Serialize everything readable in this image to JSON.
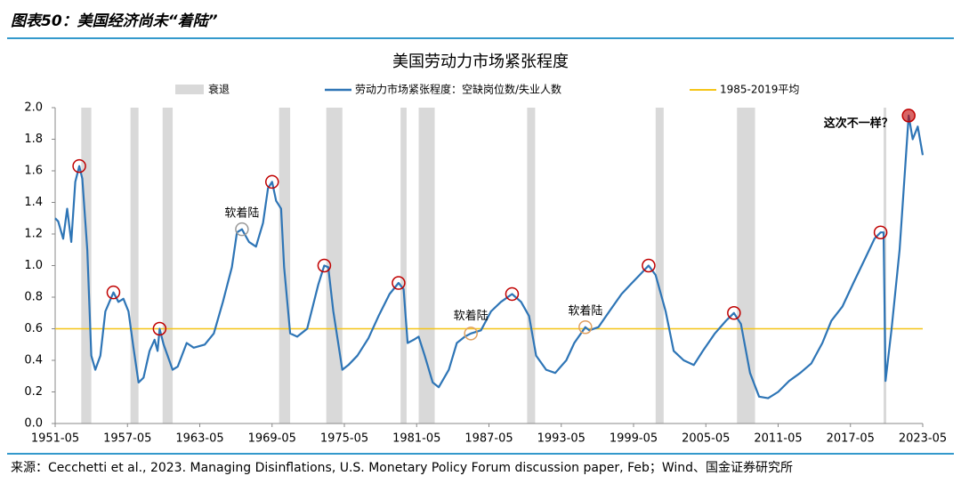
{
  "header": {
    "title": "图表50：美国经济尚未“着陆”"
  },
  "chart_data": {
    "type": "line",
    "title": "美国劳动力市场紧张程度",
    "recession_name": "衰退",
    "recession_color": "#d9d9d9",
    "recessions": [
      [
        "1953-07",
        "1954-05"
      ],
      [
        "1957-08",
        "1958-04"
      ],
      [
        "1960-04",
        "1961-02"
      ],
      [
        "1969-12",
        "1970-11"
      ],
      [
        "1973-11",
        "1975-03"
      ],
      [
        "1980-01",
        "1980-07"
      ],
      [
        "1981-07",
        "1982-11"
      ],
      [
        "1990-07",
        "1991-03"
      ],
      [
        "2001-03",
        "2001-11"
      ],
      [
        "2007-12",
        "2009-06"
      ],
      [
        "2020-02",
        "2020-04"
      ]
    ],
    "series": [
      {
        "name": "劳动力市场紧张程度：空缺岗位数/失业人数",
        "color": "#2e75b6",
        "x": [
          "1951-05",
          "1951-08",
          "1952-01",
          "1952-05",
          "1952-09",
          "1953-01",
          "1953-05",
          "1953-08",
          "1954-01",
          "1954-05",
          "1954-09",
          "1955-02",
          "1955-07",
          "1956-03",
          "1956-08",
          "1957-01",
          "1957-06",
          "1957-11",
          "1958-04",
          "1958-09",
          "1959-03",
          "1959-08",
          "1959-11",
          "1960-01",
          "1960-05",
          "1961-02",
          "1961-07",
          "1962-04",
          "1962-11",
          "1963-10",
          "1964-07",
          "1965-04",
          "1966-01",
          "1966-06",
          "1966-11",
          "1967-06",
          "1968-01",
          "1968-08",
          "1969-01",
          "1969-05",
          "1969-09",
          "1970-02",
          "1970-05",
          "1970-11",
          "1971-06",
          "1972-04",
          "1973-03",
          "1973-09",
          "1974-01",
          "1974-06",
          "1975-03",
          "1975-09",
          "1976-06",
          "1977-05",
          "1978-03",
          "1979-02",
          "1979-11",
          "1980-04",
          "1980-08",
          "1981-02",
          "1981-07",
          "1982-01",
          "1982-09",
          "1983-03",
          "1984-01",
          "1984-09",
          "1985-05",
          "1985-11",
          "1986-09",
          "1987-07",
          "1988-05",
          "1989-04",
          "1990-01",
          "1990-09",
          "1991-04",
          "1992-02",
          "1992-11",
          "1993-10",
          "1994-06",
          "1995-05",
          "1995-09",
          "1996-06",
          "1997-06",
          "1998-05",
          "1999-02",
          "1999-11",
          "2000-08",
          "2001-03",
          "2002-01",
          "2002-09",
          "2003-07",
          "2004-05",
          "2005-02",
          "2006-02",
          "2007-01",
          "2007-09",
          "2008-04",
          "2009-01",
          "2009-10",
          "2010-07",
          "2011-05",
          "2012-04",
          "2013-03",
          "2014-02",
          "2015-01",
          "2015-10",
          "2016-09",
          "2017-08",
          "2018-08",
          "2019-05",
          "2019-11",
          "2020-02",
          "2020-04",
          "2020-10",
          "2021-06",
          "2022-03",
          "2022-07",
          "2022-12",
          "2023-05"
        ],
        "values": [
          1.3,
          1.28,
          1.17,
          1.36,
          1.15,
          1.53,
          1.63,
          1.55,
          1.1,
          0.43,
          0.34,
          0.43,
          0.71,
          0.83,
          0.77,
          0.79,
          0.71,
          0.48,
          0.26,
          0.29,
          0.46,
          0.53,
          0.46,
          0.6,
          0.5,
          0.34,
          0.36,
          0.51,
          0.48,
          0.5,
          0.57,
          0.77,
          0.99,
          1.21,
          1.23,
          1.15,
          1.12,
          1.27,
          1.49,
          1.53,
          1.41,
          1.36,
          0.99,
          0.57,
          0.55,
          0.6,
          0.88,
          1.0,
          0.99,
          0.71,
          0.34,
          0.37,
          0.43,
          0.54,
          0.68,
          0.82,
          0.89,
          0.85,
          0.51,
          0.53,
          0.55,
          0.43,
          0.26,
          0.23,
          0.34,
          0.51,
          0.55,
          0.57,
          0.59,
          0.71,
          0.77,
          0.82,
          0.77,
          0.68,
          0.43,
          0.34,
          0.32,
          0.4,
          0.51,
          0.61,
          0.59,
          0.61,
          0.72,
          0.82,
          0.88,
          0.94,
          1.0,
          0.94,
          0.71,
          0.46,
          0.4,
          0.37,
          0.46,
          0.57,
          0.65,
          0.7,
          0.63,
          0.32,
          0.17,
          0.16,
          0.2,
          0.27,
          0.32,
          0.38,
          0.51,
          0.65,
          0.74,
          0.89,
          1.05,
          1.17,
          1.21,
          1.21,
          0.27,
          0.6,
          1.1,
          1.95,
          1.8,
          1.88,
          1.7
        ]
      }
    ],
    "reference_line": {
      "name": "1985-2019平均",
      "value": 0.6,
      "color": "#f5c518"
    },
    "markers": [
      {
        "x": "1953-05",
        "y": 1.63,
        "color": "#c00000"
      },
      {
        "x": "1956-03",
        "y": 0.83,
        "color": "#c00000"
      },
      {
        "x": "1960-01",
        "y": 0.6,
        "color": "#c00000"
      },
      {
        "x": "1966-11",
        "y": 1.23,
        "color": "#999999"
      },
      {
        "x": "1969-05",
        "y": 1.53,
        "color": "#c00000"
      },
      {
        "x": "1973-09",
        "y": 1.0,
        "color": "#c00000"
      },
      {
        "x": "1979-11",
        "y": 0.89,
        "color": "#c00000"
      },
      {
        "x": "1985-11",
        "y": 0.57,
        "color": "#e0a060"
      },
      {
        "x": "1989-04",
        "y": 0.82,
        "color": "#c00000"
      },
      {
        "x": "1995-05",
        "y": 0.61,
        "color": "#e0a060"
      },
      {
        "x": "2000-08",
        "y": 1.0,
        "color": "#c00000"
      },
      {
        "x": "2007-09",
        "y": 0.7,
        "color": "#c00000"
      },
      {
        "x": "2019-11",
        "y": 1.21,
        "color": "#c00000"
      },
      {
        "x": "2022-03",
        "y": 1.95,
        "color": "#c00000",
        "filled": true
      }
    ],
    "annotations": [
      {
        "text": "软着陆",
        "x": "1966-11",
        "y": 1.33
      },
      {
        "text": "软着陆",
        "x": "1985-11",
        "y": 0.68
      },
      {
        "text": "软着陆",
        "x": "1995-05",
        "y": 0.71
      },
      {
        "text": "这次不一样？",
        "x": "2018-01",
        "y": 1.9
      }
    ],
    "xlim": [
      "1951-05",
      "2023-05"
    ],
    "xticks": [
      "1951-05",
      "1957-05",
      "1963-05",
      "1969-05",
      "1975-05",
      "1981-05",
      "1987-05",
      "1993-05",
      "1999-05",
      "2005-05",
      "2011-05",
      "2017-05",
      "2023-05"
    ],
    "ylim": [
      0,
      2
    ],
    "yticks": [
      {
        "value": 0,
        "label": "0.0"
      },
      0.2,
      0.4,
      0.6,
      0.8,
      {
        "value": 1,
        "label": "1.0"
      },
      1.2,
      1.4,
      1.6,
      1.8,
      {
        "value": 2,
        "label": "2.0"
      }
    ]
  },
  "footer": {
    "source": "来源：Cecchetti et al., 2023. Managing Disinflations, U.S. Monetary Policy Forum discussion paper, Feb；Wind、国金证券研究所"
  }
}
